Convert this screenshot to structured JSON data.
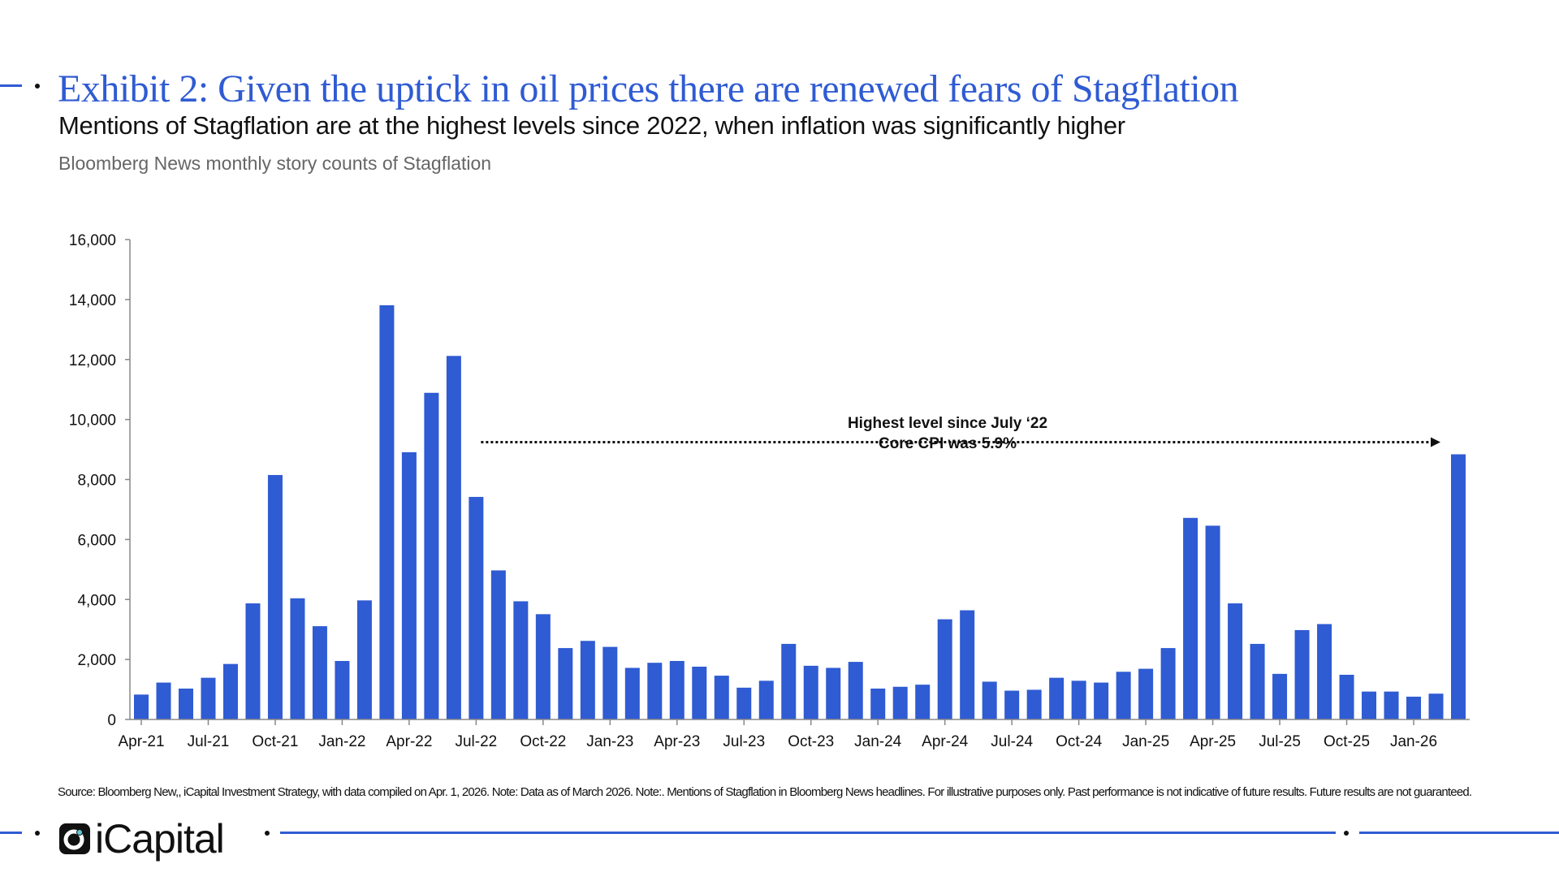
{
  "header": {
    "title": "Exhibit 2: Given the uptick in oil prices there are renewed fears of Stagflation",
    "subtitle": "Mentions of Stagflation are at the highest levels since 2022, when inflation was significantly higher",
    "description": "Bloomberg News monthly story counts of Stagflation"
  },
  "chart_data": {
    "type": "bar",
    "title": "",
    "xlabel": "",
    "ylabel": "",
    "ylim": [
      0,
      16000
    ],
    "yticks": [
      "0",
      "2,000",
      "4,000",
      "6,000",
      "8,000",
      "10,000",
      "12,000",
      "14,000",
      "16,000"
    ],
    "xtick_labels": [
      "Apr-21",
      "Jul-21",
      "Oct-21",
      "Jan-22",
      "Apr-22",
      "Jul-22",
      "Oct-22",
      "Jan-23",
      "Apr-23",
      "Jul-23",
      "Oct-23",
      "Jan-24",
      "Apr-24",
      "Jul-24",
      "Oct-24",
      "Jan-25",
      "Apr-25",
      "Jul-25",
      "Oct-25",
      "Jan-26"
    ],
    "categories": [
      "Apr-21",
      "May-21",
      "Jun-21",
      "Jul-21",
      "Aug-21",
      "Sep-21",
      "Oct-21",
      "Nov-21",
      "Dec-21",
      "Jan-22",
      "Feb-22",
      "Mar-22",
      "Apr-22",
      "May-22",
      "Jun-22",
      "Jul-22",
      "Aug-22",
      "Sep-22",
      "Oct-22",
      "Nov-22",
      "Dec-22",
      "Jan-23",
      "Feb-23",
      "Mar-23",
      "Apr-23",
      "May-23",
      "Jun-23",
      "Jul-23",
      "Aug-23",
      "Sep-23",
      "Oct-23",
      "Nov-23",
      "Dec-23",
      "Jan-24",
      "Feb-24",
      "Mar-24",
      "Apr-24",
      "May-24",
      "Jun-24",
      "Jul-24",
      "Aug-24",
      "Sep-24",
      "Oct-24",
      "Nov-24",
      "Dec-24",
      "Jan-25",
      "Feb-25",
      "Mar-25",
      "Apr-25",
      "May-25",
      "Jun-25",
      "Jul-25",
      "Aug-25",
      "Sep-25",
      "Oct-25",
      "Nov-25",
      "Dec-25",
      "Jan-26",
      "Feb-26",
      "Mar-26"
    ],
    "values": [
      830,
      1230,
      1030,
      1390,
      1850,
      3870,
      8150,
      4040,
      3110,
      1950,
      3970,
      13810,
      8910,
      10890,
      12120,
      7420,
      4970,
      3940,
      3510,
      2380,
      2620,
      2420,
      1720,
      1890,
      1950,
      1760,
      1460,
      1060,
      1290,
      2520,
      1790,
      1720,
      1920,
      1030,
      1090,
      1160,
      3340,
      3640,
      1260,
      960,
      990,
      1390,
      1290,
      1230,
      1590,
      1690,
      2380,
      6720,
      6460,
      3870,
      2520,
      1520,
      2980,
      3180,
      1490,
      930,
      930,
      760,
      860,
      8840
    ],
    "bar_color": "#2f5bd3",
    "grid": false,
    "annotation": {
      "lines": [
        "Highest level since July ‘22",
        "Core CPI was 5.9%"
      ],
      "arrow_from": "Jul-22",
      "arrow_to": "Mar-26",
      "arrow_value": 8840
    }
  },
  "footer": {
    "source": "Source: Bloomberg New,, iCapital Investment Strategy, with data compiled on Apr. 1, 2026. Note: Data as of March 2026. Note:. Mentions of Stagflation in Bloomberg News headlines. For illustrative purposes only. Past performance is not indicative of future results. Future results are not guaranteed.",
    "logo": "iCapital"
  },
  "colors": {
    "accent": "#2f5bd3",
    "text": "#111111",
    "muted": "#666666"
  }
}
